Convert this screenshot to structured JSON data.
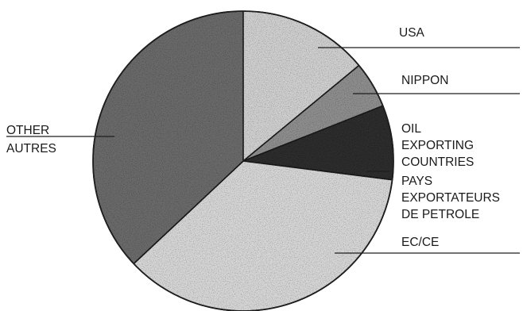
{
  "chart_data": {
    "type": "pie",
    "start_angle_deg": 90,
    "direction": "clockwise",
    "title": "",
    "slices": [
      {
        "key": "usa",
        "labels": [
          "USA"
        ],
        "value": 14,
        "color": "#cfcfcf"
      },
      {
        "key": "nippon",
        "labels": [
          "NIPPON"
        ],
        "value": 5,
        "color": "#8e8e8e"
      },
      {
        "key": "oil",
        "labels": [
          "OIL",
          "EXPORTING",
          "COUNTRIES",
          "PAYS",
          "EXPORTATEURS",
          "DE PETROLE"
        ],
        "value": 8,
        "color": "#2f2f2f"
      },
      {
        "key": "ec",
        "labels": [
          "EC/CE"
        ],
        "value": 36,
        "color": "#d6d6d6"
      },
      {
        "key": "other",
        "labels": [
          "OTHER",
          "AUTRES"
        ],
        "value": 37,
        "color": "#6b6b6b"
      }
    ]
  }
}
